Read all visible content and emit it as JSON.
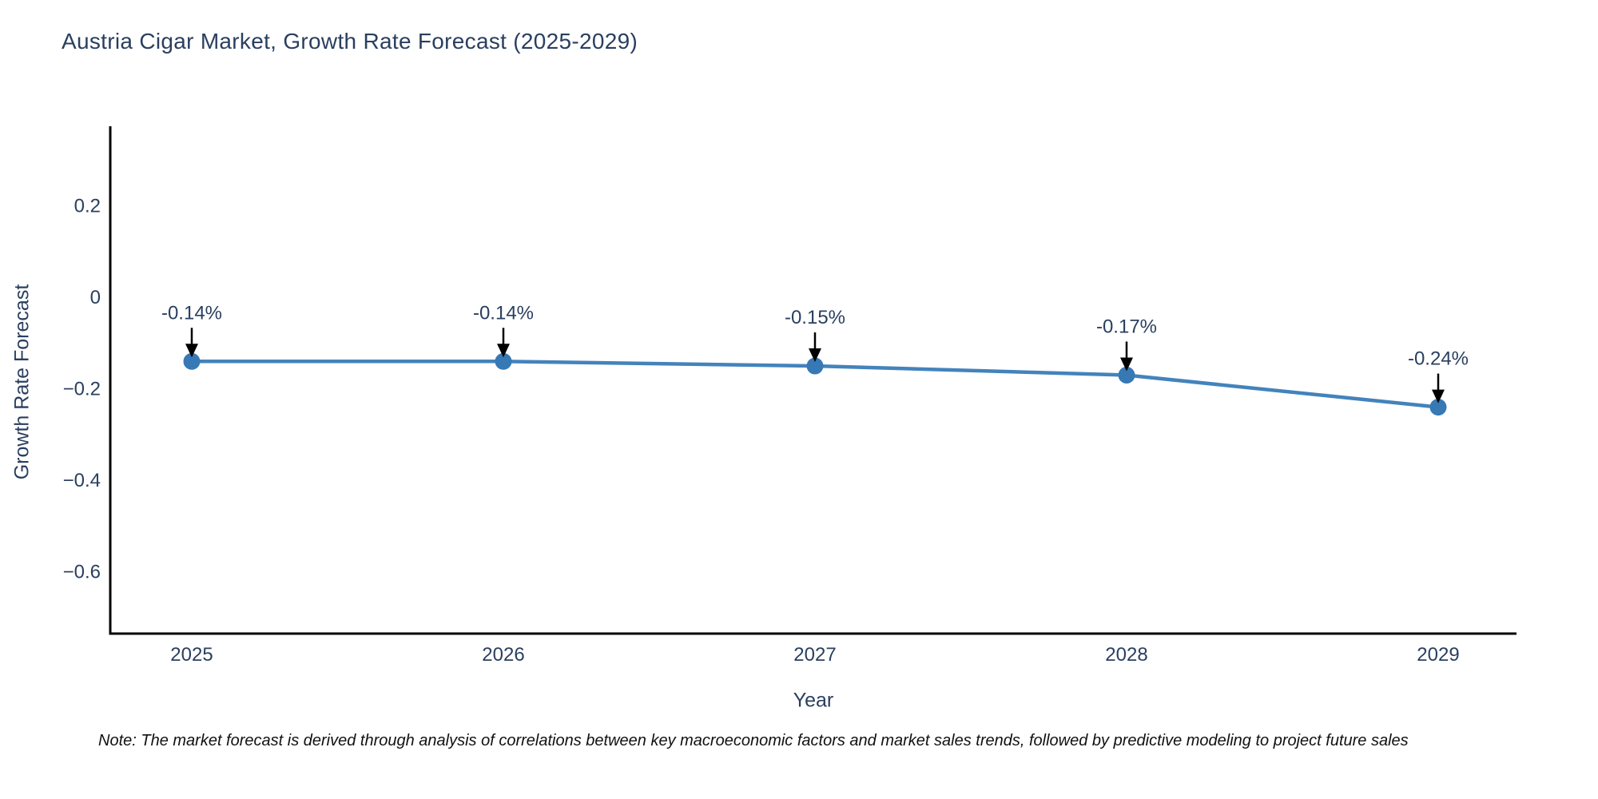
{
  "title": "Austria Cigar Market, Growth Rate Forecast (2025-2029)",
  "note": "Note: The market forecast is derived through analysis of correlations between key macroeconomic factors and market sales trends, followed by predictive modeling to project future sales",
  "colors": {
    "line": "#4383bc",
    "marker": "#3679b5",
    "text": "#2a3f5f",
    "axis": "#000000",
    "arrow": "#000000",
    "note_text": "#111111",
    "background": "#ffffff"
  },
  "chart_data": {
    "type": "line",
    "title": "Austria Cigar Market, Growth Rate Forecast (2025-2029)",
    "xlabel": "Year",
    "ylabel": "Growth Rate Forecast",
    "categories": [
      "2025",
      "2026",
      "2027",
      "2028",
      "2029"
    ],
    "values": [
      -0.14,
      -0.14,
      -0.15,
      -0.17,
      -0.24
    ],
    "point_labels": [
      "-0.14%",
      "-0.14%",
      "-0.15%",
      "-0.17%",
      "-0.24%"
    ],
    "ylim": [
      -0.735,
      0.374
    ],
    "yticks": [
      0.2,
      0,
      -0.2,
      -0.4,
      -0.6
    ],
    "ytick_labels": [
      "0.2",
      "0",
      "−0.2",
      "−0.4",
      "−0.6"
    ],
    "grid": false,
    "legend": "none",
    "annotations_arrows": true
  }
}
